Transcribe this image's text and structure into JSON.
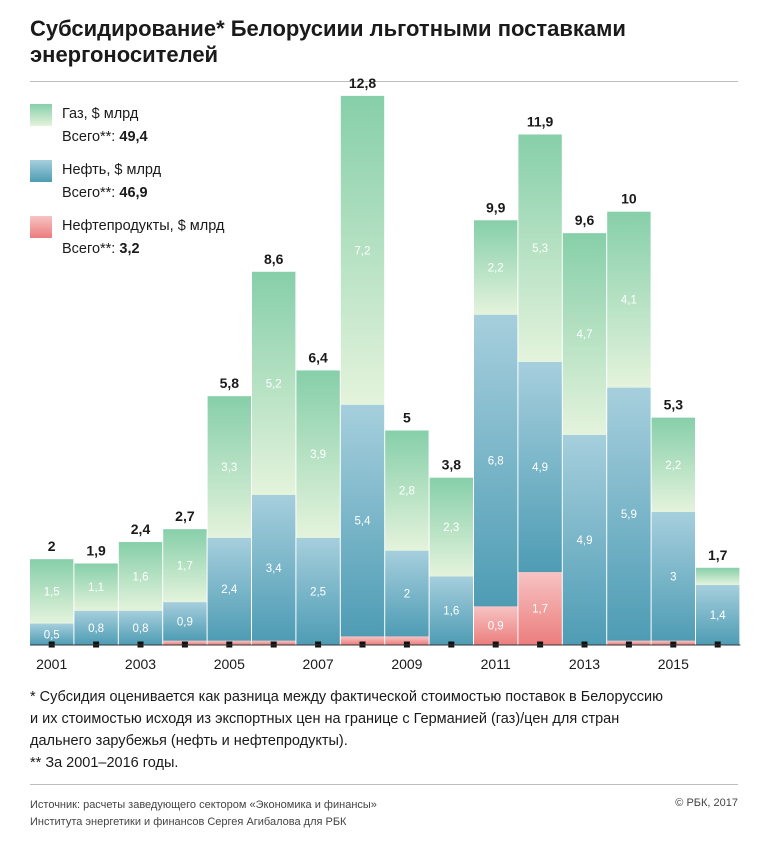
{
  "title": "Субсидирование* Белорусиии льготными поставками энергоносителей",
  "legend": {
    "gas": {
      "label": "Газ, $ млрд",
      "total_prefix": "Всего**: ",
      "total_value": "49,4"
    },
    "oil": {
      "label": "Нефть, $ млрд",
      "total_prefix": "Всего**: ",
      "total_value": "46,9"
    },
    "products": {
      "label": "Нефтепродукты, $ млрд",
      "total_prefix": "Всего**: ",
      "total_value": "3,2"
    }
  },
  "notes": {
    "line1": "* Субсидия оценивается как разница между фактической стоимостью поставок в Белоруссию",
    "line2": "и их стоимостью исходя из экспортных цен на границе с Германией (газ)/цен для стран",
    "line3": "дальнего зарубежья (нефть и нефтепродукты).",
    "line4": "** За 2001–2016 годы."
  },
  "source": {
    "line1": "Источник: расчеты заведующего сектором «Экономика и финансы»",
    "line2": "Института энергетики и финансов Сергея Агибалова для РБК"
  },
  "copyright": "© РБК, 2017",
  "colors": {
    "gas_top": "#86cfa9",
    "gas_bottom": "#e4f3dc",
    "oil_top": "#a6cfdd",
    "oil_bottom": "#4e9cb4",
    "products_top": "#f7c3c3",
    "products_bottom": "#ec7d7d"
  },
  "chart_data": {
    "type": "bar",
    "stacked": true,
    "categories": [
      "2001",
      "2002",
      "2003",
      "2004",
      "2005",
      "2006",
      "2007",
      "2008",
      "2009",
      "2010",
      "2011",
      "2012",
      "2013",
      "2014",
      "2015",
      "2016"
    ],
    "x_tick_labels": [
      "2001",
      "",
      "2003",
      "",
      "2005",
      "",
      "2007",
      "",
      "2009",
      "",
      "2011",
      "",
      "2013",
      "",
      "2015",
      ""
    ],
    "series": [
      {
        "name": "Нефтепродукты, $ млрд",
        "key": "products",
        "values": [
          0,
          0,
          0,
          0.1,
          0.1,
          0.1,
          0,
          0.2,
          0.2,
          0,
          0.9,
          1.7,
          0,
          0.1,
          0.1,
          0
        ],
        "labels": [
          "",
          "",
          "",
          "",
          "",
          "",
          "",
          "",
          "",
          "",
          "0,9",
          "1,7",
          "",
          "",
          "",
          ""
        ]
      },
      {
        "name": "Нефть, $ млрд",
        "key": "oil",
        "values": [
          0.5,
          0.8,
          0.8,
          0.9,
          2.4,
          3.4,
          2.5,
          5.4,
          2,
          1.6,
          6.8,
          4.9,
          4.9,
          5.9,
          3,
          1.4
        ],
        "labels": [
          "0,5",
          "0,8",
          "0,8",
          "0,9",
          "2,4",
          "3,4",
          "2,5",
          "5,4",
          "2",
          "1,6",
          "6,8",
          "4,9",
          "4,9",
          "5,9",
          "3",
          "1,4"
        ]
      },
      {
        "name": "Газ, $ млрд",
        "key": "gas",
        "values": [
          1.5,
          1.1,
          1.6,
          1.7,
          3.3,
          5.2,
          3.9,
          7.2,
          2.8,
          2.3,
          2.2,
          5.3,
          4.7,
          4.1,
          2.2,
          0.4
        ],
        "labels": [
          "1,5",
          "1,1",
          "1,6",
          "1,7",
          "3,3",
          "5,2",
          "3,9",
          "7,2",
          "2,8",
          "2,3",
          "2,2",
          "5,3",
          "4,7",
          "4,1",
          "2,2",
          ""
        ]
      }
    ],
    "totals": [
      2,
      1.9,
      2.4,
      2.7,
      5.8,
      8.6,
      6.4,
      12.8,
      5,
      3.8,
      9.9,
      11.9,
      9.6,
      10,
      5.3,
      1.7
    ],
    "total_labels": [
      "2",
      "1,9",
      "2,4",
      "2,7",
      "5,8",
      "8,6",
      "6,4",
      "12,8",
      "5",
      "3,8",
      "9,9",
      "11,9",
      "9,6",
      "10",
      "5,3",
      "1,7"
    ],
    "ylim": [
      0,
      13
    ],
    "grid": false,
    "legend_position": "top-left"
  }
}
